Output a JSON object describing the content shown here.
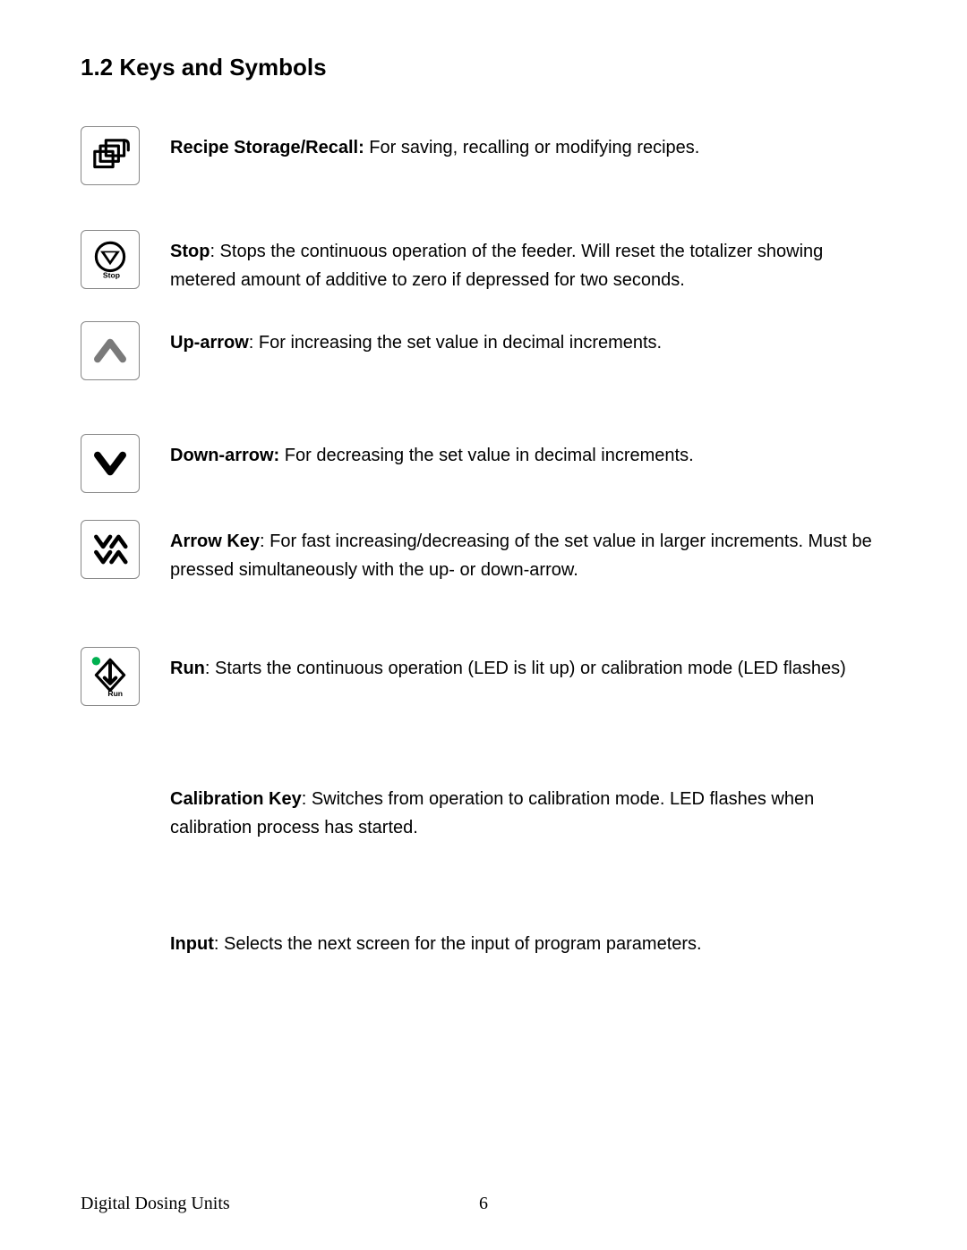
{
  "section_title": "1.2 Keys and Symbols",
  "entries": [
    {
      "term": "Recipe Storage/Recall:",
      "text": " For saving, recalling or modifying recipes.",
      "icon": "recipe"
    },
    {
      "term": "Stop",
      "text": ": Stops the continuous operation of the feeder. Will reset the totalizer showing metered amount of additive to zero if depressed for two seconds.",
      "icon": "stop"
    },
    {
      "term": "Up-arrow",
      "text": ": For increasing the set value in decimal increments.",
      "icon": "up"
    },
    {
      "term": "Down-arrow:",
      "text": " For decreasing the set value in decimal increments.",
      "icon": "down"
    },
    {
      "term": "Arrow Key",
      "text": ": For fast increasing/decreasing of the set value in larger increments. Must be pressed simultaneously with the up- or down-arrow.",
      "icon": "arrowkey"
    },
    {
      "term": "Run",
      "text": ": Starts the continuous operation (LED is lit up) or calibration mode (LED flashes)",
      "icon": "run"
    },
    {
      "term": "Calibration Key",
      "text": ": Switches from operation to calibration mode. LED flashes when calibration process has started.",
      "icon": null
    },
    {
      "term": "Input",
      "text": ": Selects the next screen for the input of program parameters.",
      "icon": null
    }
  ],
  "page_gap_after": {
    "0": 20,
    "2": 30,
    "4": 40,
    "5": 50,
    "6": 60
  },
  "footer": {
    "title": "Digital Dosing Units",
    "pagenum": "6"
  },
  "colors": {
    "text": "#000000",
    "icon_stroke": "#000000",
    "icon_border": "#888888",
    "led_green": "#00b050",
    "icon_gray": "#7a7a7a"
  }
}
